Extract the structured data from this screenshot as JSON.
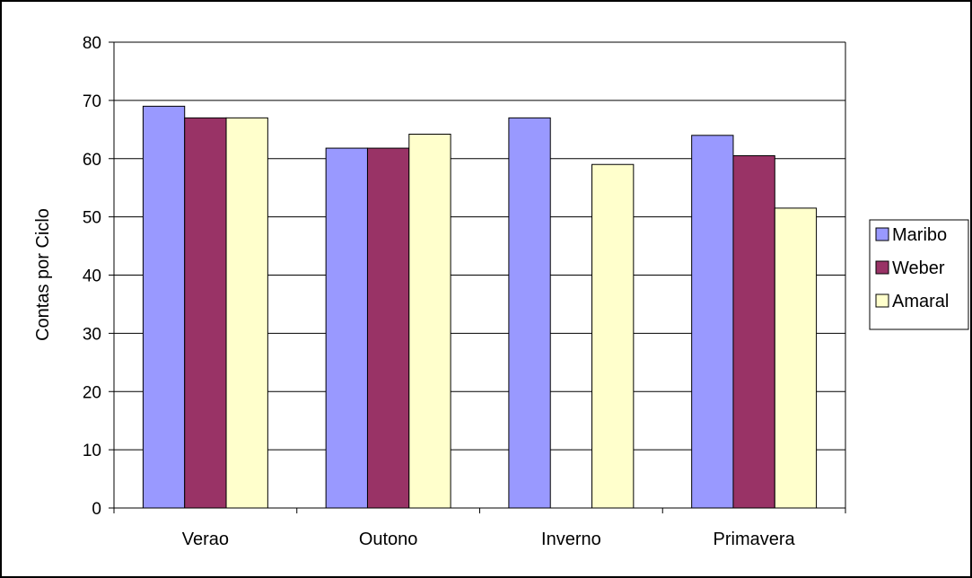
{
  "chart_data": {
    "type": "bar",
    "title": "",
    "xlabel": "",
    "ylabel": "Contas por Ciclo",
    "categories": [
      "Verao",
      "Outono",
      "Inverno",
      "Primavera"
    ],
    "series": [
      {
        "name": "Maribo",
        "values": [
          69,
          61.8,
          67,
          64
        ],
        "color": "#9999ff"
      },
      {
        "name": "Weber",
        "values": [
          67,
          61.8,
          null,
          60.5
        ],
        "color": "#993366"
      },
      {
        "name": "Amaral",
        "values": [
          67,
          64.2,
          59,
          51.5
        ],
        "color": "#ffffcc"
      }
    ],
    "ylim": [
      0,
      80
    ],
    "yticks": [
      0,
      10,
      20,
      30,
      40,
      50,
      60,
      70,
      80
    ],
    "grid": true,
    "legend_position": "right",
    "colors": {
      "plot_background": "#ffffff",
      "gridline": "#000000",
      "bar_border": "#000000"
    }
  }
}
